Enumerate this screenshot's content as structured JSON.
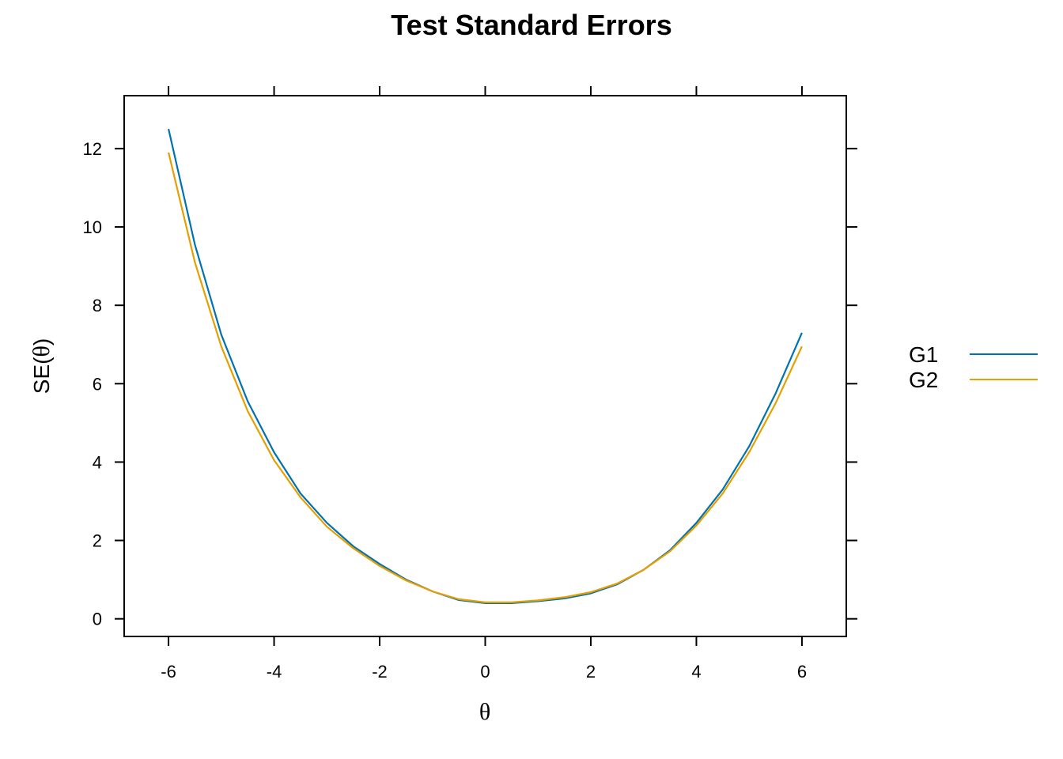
{
  "chart_data": {
    "type": "line",
    "title": "Test Standard Errors",
    "xlabel": "θ",
    "ylabel_prefix": "SE(",
    "ylabel_theta": "θ",
    "ylabel_suffix": ")",
    "xlim": [
      -6.84,
      6.84
    ],
    "ylim": [
      -0.45,
      13.35
    ],
    "xticks": [
      -6,
      -4,
      -2,
      0,
      2,
      4,
      6
    ],
    "yticks": [
      0,
      2,
      4,
      6,
      8,
      10,
      12
    ],
    "xtick_labels": [
      "-6",
      "-4",
      "-2",
      "0",
      "2",
      "4",
      "6"
    ],
    "ytick_labels": [
      "0",
      "2",
      "4",
      "6",
      "8",
      "10",
      "12"
    ],
    "grid": false,
    "legend_position": "right",
    "x": [
      -6,
      -5.5,
      -5,
      -4.5,
      -4,
      -3.5,
      -3,
      -2.5,
      -2,
      -1.5,
      -1,
      -0.5,
      0,
      0.5,
      1,
      1.5,
      2,
      2.5,
      3,
      3.5,
      4,
      4.5,
      5,
      5.5,
      6
    ],
    "series": [
      {
        "name": "G1",
        "color": "#0072B2",
        "values": [
          12.5,
          9.55,
          7.25,
          5.55,
          4.25,
          3.2,
          2.45,
          1.85,
          1.4,
          1.0,
          0.7,
          0.48,
          0.4,
          0.4,
          0.45,
          0.52,
          0.65,
          0.88,
          1.25,
          1.75,
          2.45,
          3.3,
          4.4,
          5.75,
          7.3
        ]
      },
      {
        "name": "G2",
        "color": "#E69F00",
        "values": [
          11.9,
          9.1,
          6.95,
          5.3,
          4.05,
          3.1,
          2.35,
          1.8,
          1.35,
          0.98,
          0.7,
          0.5,
          0.42,
          0.42,
          0.47,
          0.55,
          0.68,
          0.9,
          1.25,
          1.72,
          2.38,
          3.2,
          4.25,
          5.5,
          6.95
        ]
      }
    ]
  }
}
